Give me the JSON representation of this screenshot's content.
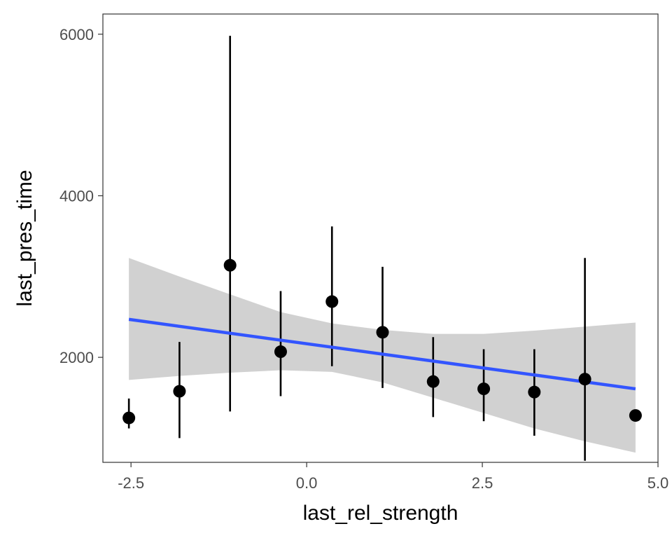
{
  "chart_data": {
    "type": "scatter",
    "xlabel": "last_rel_strength",
    "ylabel": "last_pres_time",
    "xlim": [
      -2.9,
      5.0
    ],
    "ylim": [
      700,
      6250
    ],
    "x_ticks": [
      {
        "value": -2.5,
        "label": "-2.5"
      },
      {
        "value": 0.0,
        "label": "0.0"
      },
      {
        "value": 2.5,
        "label": "2.5"
      },
      {
        "value": 5.0,
        "label": "5.0"
      }
    ],
    "y_ticks": [
      {
        "value": 2000,
        "label": "2000"
      },
      {
        "value": 4000,
        "label": "4000"
      },
      {
        "value": 6000,
        "label": "6000"
      }
    ],
    "grid": false,
    "points": [
      {
        "x": -2.53,
        "y": 1250,
        "lower": 1120,
        "upper": 1490
      },
      {
        "x": -1.81,
        "y": 1580,
        "lower": 1000,
        "upper": 2190
      },
      {
        "x": -1.09,
        "y": 3140,
        "lower": 1330,
        "upper": 5980
      },
      {
        "x": -0.37,
        "y": 2070,
        "lower": 1520,
        "upper": 2820
      },
      {
        "x": 0.36,
        "y": 2690,
        "lower": 1890,
        "upper": 3620
      },
      {
        "x": 1.08,
        "y": 2310,
        "lower": 1620,
        "upper": 3120
      },
      {
        "x": 1.8,
        "y": 1700,
        "lower": 1260,
        "upper": 2250
      },
      {
        "x": 2.52,
        "y": 1610,
        "lower": 1210,
        "upper": 2100
      },
      {
        "x": 3.24,
        "y": 1570,
        "lower": 1030,
        "upper": 2100
      },
      {
        "x": 3.96,
        "y": 1730,
        "lower": 720,
        "upper": 3230
      },
      {
        "x": 4.68,
        "y": 1280,
        "lower": 1280,
        "upper": 1280
      }
    ],
    "trend_line": {
      "color": "#3355ff",
      "points": [
        {
          "x": -2.53,
          "y": 2470
        },
        {
          "x": 4.68,
          "y": 1610
        }
      ]
    },
    "confidence_band": {
      "color": "#cccccc",
      "points": [
        {
          "x": -2.53,
          "lower": 1720,
          "upper": 3230
        },
        {
          "x": -1.81,
          "lower": 1770,
          "upper": 3000
        },
        {
          "x": -1.09,
          "lower": 1810,
          "upper": 2780
        },
        {
          "x": -0.37,
          "lower": 1840,
          "upper": 2560
        },
        {
          "x": 0.36,
          "lower": 1820,
          "upper": 2420
        },
        {
          "x": 1.08,
          "lower": 1690,
          "upper": 2340
        },
        {
          "x": 1.8,
          "lower": 1500,
          "upper": 2290
        },
        {
          "x": 2.52,
          "lower": 1310,
          "upper": 2290
        },
        {
          "x": 3.24,
          "lower": 1120,
          "upper": 2330
        },
        {
          "x": 3.96,
          "lower": 960,
          "upper": 2380
        },
        {
          "x": 4.68,
          "lower": 820,
          "upper": 2430
        }
      ]
    },
    "point_color": "#000000",
    "errorbar_color": "#000000"
  }
}
